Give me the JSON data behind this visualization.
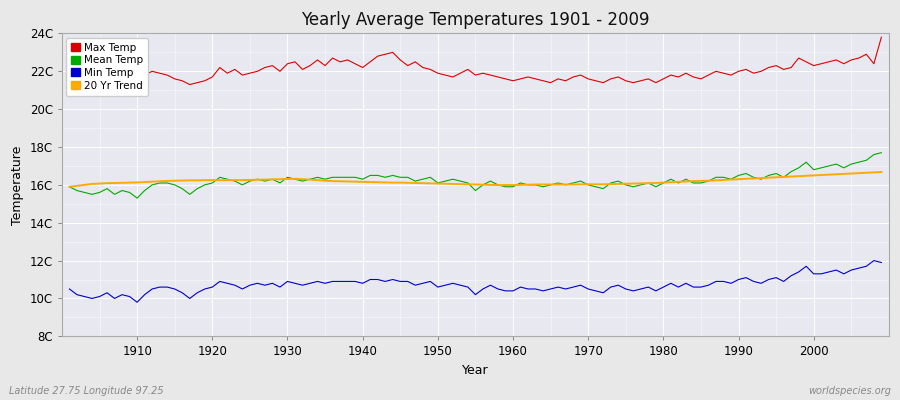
{
  "title": "Yearly Average Temperatures 1901 - 2009",
  "xlabel": "Year",
  "ylabel": "Temperature",
  "years": [
    1901,
    1902,
    1903,
    1904,
    1905,
    1906,
    1907,
    1908,
    1909,
    1910,
    1911,
    1912,
    1913,
    1914,
    1915,
    1916,
    1917,
    1918,
    1919,
    1920,
    1921,
    1922,
    1923,
    1924,
    1925,
    1926,
    1927,
    1928,
    1929,
    1930,
    1931,
    1932,
    1933,
    1934,
    1935,
    1936,
    1937,
    1938,
    1939,
    1940,
    1941,
    1942,
    1943,
    1944,
    1945,
    1946,
    1947,
    1948,
    1949,
    1950,
    1951,
    1952,
    1953,
    1954,
    1955,
    1956,
    1957,
    1958,
    1959,
    1960,
    1961,
    1962,
    1963,
    1964,
    1965,
    1966,
    1967,
    1968,
    1969,
    1970,
    1971,
    1972,
    1973,
    1974,
    1975,
    1976,
    1977,
    1978,
    1979,
    1980,
    1981,
    1982,
    1983,
    1984,
    1985,
    1986,
    1987,
    1988,
    1989,
    1990,
    1991,
    1992,
    1993,
    1994,
    1995,
    1996,
    1997,
    1998,
    1999,
    2000,
    2001,
    2002,
    2003,
    2004,
    2005,
    2006,
    2007,
    2008,
    2009
  ],
  "max_temp": [
    21.3,
    21.8,
    21.5,
    21.2,
    21.4,
    21.9,
    21.6,
    21.7,
    21.4,
    21.1,
    21.8,
    22.0,
    21.9,
    21.8,
    21.6,
    21.5,
    21.3,
    21.4,
    21.5,
    21.7,
    22.2,
    21.9,
    22.1,
    21.8,
    21.9,
    22.0,
    22.2,
    22.3,
    22.0,
    22.4,
    22.5,
    22.1,
    22.3,
    22.6,
    22.3,
    22.7,
    22.5,
    22.6,
    22.4,
    22.2,
    22.5,
    22.8,
    22.9,
    23.0,
    22.6,
    22.3,
    22.5,
    22.2,
    22.1,
    21.9,
    21.8,
    21.7,
    21.9,
    22.1,
    21.8,
    21.9,
    21.8,
    21.7,
    21.6,
    21.5,
    21.6,
    21.7,
    21.6,
    21.5,
    21.4,
    21.6,
    21.5,
    21.7,
    21.8,
    21.6,
    21.5,
    21.4,
    21.6,
    21.7,
    21.5,
    21.4,
    21.5,
    21.6,
    21.4,
    21.6,
    21.8,
    21.7,
    21.9,
    21.7,
    21.6,
    21.8,
    22.0,
    21.9,
    21.8,
    22.0,
    22.1,
    21.9,
    22.0,
    22.2,
    22.3,
    22.1,
    22.2,
    22.7,
    22.5,
    22.3,
    22.4,
    22.5,
    22.6,
    22.4,
    22.6,
    22.7,
    22.9,
    22.4,
    23.8
  ],
  "mean_temp": [
    15.9,
    15.7,
    15.6,
    15.5,
    15.6,
    15.8,
    15.5,
    15.7,
    15.6,
    15.3,
    15.7,
    16.0,
    16.1,
    16.1,
    16.0,
    15.8,
    15.5,
    15.8,
    16.0,
    16.1,
    16.4,
    16.3,
    16.2,
    16.0,
    16.2,
    16.3,
    16.2,
    16.3,
    16.1,
    16.4,
    16.3,
    16.2,
    16.3,
    16.4,
    16.3,
    16.4,
    16.4,
    16.4,
    16.4,
    16.3,
    16.5,
    16.5,
    16.4,
    16.5,
    16.4,
    16.4,
    16.2,
    16.3,
    16.4,
    16.1,
    16.2,
    16.3,
    16.2,
    16.1,
    15.7,
    16.0,
    16.2,
    16.0,
    15.9,
    15.9,
    16.1,
    16.0,
    16.0,
    15.9,
    16.0,
    16.1,
    16.0,
    16.1,
    16.2,
    16.0,
    15.9,
    15.8,
    16.1,
    16.2,
    16.0,
    15.9,
    16.0,
    16.1,
    15.9,
    16.1,
    16.3,
    16.1,
    16.3,
    16.1,
    16.1,
    16.2,
    16.4,
    16.4,
    16.3,
    16.5,
    16.6,
    16.4,
    16.3,
    16.5,
    16.6,
    16.4,
    16.7,
    16.9,
    17.2,
    16.8,
    16.9,
    17.0,
    17.1,
    16.9,
    17.1,
    17.2,
    17.3,
    17.6,
    17.7
  ],
  "min_temp": [
    10.5,
    10.2,
    10.1,
    10.0,
    10.1,
    10.3,
    10.0,
    10.2,
    10.1,
    9.8,
    10.2,
    10.5,
    10.6,
    10.6,
    10.5,
    10.3,
    10.0,
    10.3,
    10.5,
    10.6,
    10.9,
    10.8,
    10.7,
    10.5,
    10.7,
    10.8,
    10.7,
    10.8,
    10.6,
    10.9,
    10.8,
    10.7,
    10.8,
    10.9,
    10.8,
    10.9,
    10.9,
    10.9,
    10.9,
    10.8,
    11.0,
    11.0,
    10.9,
    11.0,
    10.9,
    10.9,
    10.7,
    10.8,
    10.9,
    10.6,
    10.7,
    10.8,
    10.7,
    10.6,
    10.2,
    10.5,
    10.7,
    10.5,
    10.4,
    10.4,
    10.6,
    10.5,
    10.5,
    10.4,
    10.5,
    10.6,
    10.5,
    10.6,
    10.7,
    10.5,
    10.4,
    10.3,
    10.6,
    10.7,
    10.5,
    10.4,
    10.5,
    10.6,
    10.4,
    10.6,
    10.8,
    10.6,
    10.8,
    10.6,
    10.6,
    10.7,
    10.9,
    10.9,
    10.8,
    11.0,
    11.1,
    10.9,
    10.8,
    11.0,
    11.1,
    10.9,
    11.2,
    11.4,
    11.7,
    11.3,
    11.3,
    11.4,
    11.5,
    11.3,
    11.5,
    11.6,
    11.7,
    12.0,
    11.9
  ],
  "trend_temp": [
    15.9,
    15.95,
    16.0,
    16.05,
    16.07,
    16.09,
    16.1,
    16.11,
    16.12,
    16.13,
    16.15,
    16.17,
    16.19,
    16.21,
    16.22,
    16.23,
    16.24,
    16.24,
    16.25,
    16.25,
    16.25,
    16.25,
    16.25,
    16.25,
    16.26,
    16.27,
    16.28,
    16.29,
    16.3,
    16.31,
    16.32,
    16.3,
    16.28,
    16.25,
    16.22,
    16.2,
    16.19,
    16.18,
    16.17,
    16.16,
    16.15,
    16.14,
    16.13,
    16.12,
    16.12,
    16.11,
    16.1,
    16.09,
    16.08,
    16.07,
    16.06,
    16.05,
    16.04,
    16.03,
    16.02,
    16.01,
    16.0,
    15.99,
    15.99,
    15.99,
    16.0,
    16.01,
    16.02,
    16.02,
    16.02,
    16.02,
    16.02,
    16.02,
    16.03,
    16.03,
    16.03,
    16.03,
    16.04,
    16.05,
    16.06,
    16.07,
    16.08,
    16.09,
    16.1,
    16.12,
    16.14,
    16.16,
    16.18,
    16.2,
    16.21,
    16.22,
    16.24,
    16.26,
    16.28,
    16.3,
    16.32,
    16.34,
    16.36,
    16.38,
    16.4,
    16.42,
    16.44,
    16.46,
    16.48,
    16.5,
    16.52,
    16.54,
    16.56,
    16.58,
    16.6,
    16.62,
    16.64,
    16.66,
    16.68
  ],
  "max_color": "#dd0000",
  "mean_color": "#00aa00",
  "min_color": "#0000cc",
  "trend_color": "#ffaa00",
  "bg_color": "#e8e8e8",
  "plot_bg_color": "#e8e8f0",
  "grid_color": "#ffffff",
  "ylim_min": 8,
  "ylim_max": 24,
  "yticks": [
    8,
    10,
    12,
    14,
    16,
    18,
    20,
    22,
    24
  ],
  "ytick_labels": [
    "8C",
    "10C",
    "12C",
    "14C",
    "16C",
    "18C",
    "20C",
    "22C",
    "24C"
  ],
  "xticks": [
    1910,
    1920,
    1930,
    1940,
    1950,
    1960,
    1970,
    1980,
    1990,
    2000
  ],
  "footer_left": "Latitude 27.75 Longitude 97.25",
  "footer_right": "worldspecies.org",
  "legend_labels": [
    "Max Temp",
    "Mean Temp",
    "Min Temp",
    "20 Yr Trend"
  ]
}
